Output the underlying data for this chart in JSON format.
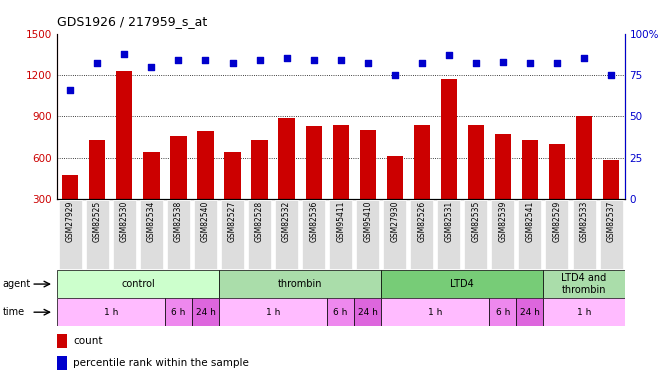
{
  "title": "GDS1926 / 217959_s_at",
  "samples": [
    "GSM27929",
    "GSM82525",
    "GSM82530",
    "GSM82534",
    "GSM82538",
    "GSM82540",
    "GSM82527",
    "GSM82528",
    "GSM82532",
    "GSM82536",
    "GSM95411",
    "GSM95410",
    "GSM27930",
    "GSM82526",
    "GSM82531",
    "GSM82535",
    "GSM82539",
    "GSM82541",
    "GSM82529",
    "GSM82533",
    "GSM82537"
  ],
  "counts": [
    470,
    730,
    1230,
    640,
    760,
    790,
    640,
    730,
    890,
    830,
    840,
    800,
    610,
    840,
    1170,
    840,
    770,
    730,
    700,
    900,
    580
  ],
  "percentile_ranks": [
    66,
    82,
    88,
    80,
    84,
    84,
    82,
    84,
    85,
    84,
    84,
    82,
    75,
    82,
    87,
    82,
    83,
    82,
    82,
    85,
    75
  ],
  "bar_color": "#cc0000",
  "dot_color": "#0000cc",
  "ylim_left": [
    300,
    1500
  ],
  "ylim_right": [
    0,
    100
  ],
  "yticks_left": [
    300,
    600,
    900,
    1200,
    1500
  ],
  "yticks_right": [
    0,
    25,
    50,
    75,
    100
  ],
  "grid_lines": [
    600,
    900,
    1200
  ],
  "agent_groups": [
    {
      "label": "control",
      "start": 0,
      "end": 6,
      "color": "#ccffcc"
    },
    {
      "label": "thrombin",
      "start": 6,
      "end": 12,
      "color": "#aaddaa"
    },
    {
      "label": "LTD4",
      "start": 12,
      "end": 18,
      "color": "#77cc77"
    },
    {
      "label": "LTD4 and\nthrombin",
      "start": 18,
      "end": 21,
      "color": "#aaddaa"
    }
  ],
  "time_groups": [
    {
      "label": "1 h",
      "start": 0,
      "end": 4,
      "color": "#ffbbff"
    },
    {
      "label": "6 h",
      "start": 4,
      "end": 5,
      "color": "#ee88ee"
    },
    {
      "label": "24 h",
      "start": 5,
      "end": 6,
      "color": "#dd66dd"
    },
    {
      "label": "1 h",
      "start": 6,
      "end": 10,
      "color": "#ffbbff"
    },
    {
      "label": "6 h",
      "start": 10,
      "end": 11,
      "color": "#ee88ee"
    },
    {
      "label": "24 h",
      "start": 11,
      "end": 12,
      "color": "#dd66dd"
    },
    {
      "label": "1 h",
      "start": 12,
      "end": 16,
      "color": "#ffbbff"
    },
    {
      "label": "6 h",
      "start": 16,
      "end": 17,
      "color": "#ee88ee"
    },
    {
      "label": "24 h",
      "start": 17,
      "end": 18,
      "color": "#dd66dd"
    },
    {
      "label": "1 h",
      "start": 18,
      "end": 21,
      "color": "#ffbbff"
    }
  ]
}
